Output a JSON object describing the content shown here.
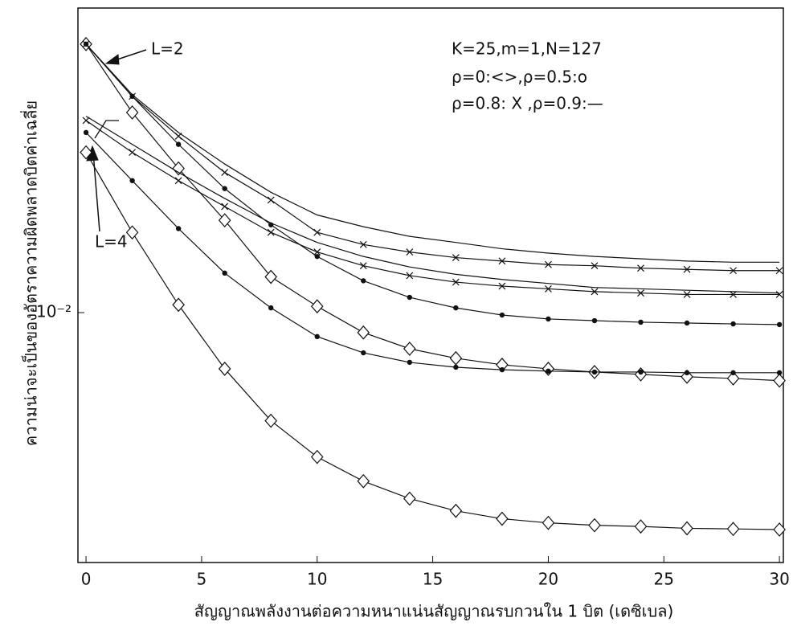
{
  "chart_data": {
    "type": "line",
    "xlabel": "สัญญาณพลังงานต่อความหนาแน่นสัญญาณรบกวนใน 1 บิต (เดซิเบล)",
    "ylabel": "ความน่าจะเป็นของอัตราความผิดพลาดบิตค่าเฉลี่ย",
    "annotations": [
      "K=25,m=1,N=127",
      "ρ=0:<>,ρ=0.5:o",
      "ρ=0.8: X ,ρ=0.9:—",
      "L=2",
      "L=4"
    ],
    "log_y": true,
    "xlim": [
      -0.35,
      30.17
    ],
    "xticks": [
      0,
      5,
      10,
      15,
      20,
      25,
      30
    ],
    "ylim": [
      0.0021,
      0.067
    ],
    "yticks": [
      {
        "value": 0.01,
        "label": "10⁻²"
      }
    ],
    "x": [
      0,
      2,
      4,
      6,
      8,
      10,
      12,
      14,
      16,
      18,
      20,
      22,
      24,
      26,
      28,
      30
    ],
    "series": [
      {
        "color": "#111111",
        "marker": "diamond",
        "values": [
          0.0535,
          0.0349,
          0.0246,
          0.0178,
          0.0125,
          0.0104,
          0.00883,
          0.00798,
          0.00752,
          0.00722,
          0.00704,
          0.0069,
          0.0068,
          0.0067,
          0.00663,
          0.00654
        ]
      },
      {
        "color": "#111111",
        "marker": "dot",
        "values": [
          0.0535,
          0.0386,
          0.0286,
          0.0217,
          0.0173,
          0.0142,
          0.0122,
          0.011,
          0.0103,
          0.00985,
          0.00961,
          0.00951,
          0.00942,
          0.00937,
          0.00932,
          0.00928
        ]
      },
      {
        "color": "#111111",
        "marker": "x",
        "values": [
          0.0535,
          0.0386,
          0.0301,
          0.024,
          0.0202,
          0.0165,
          0.0153,
          0.0146,
          0.0141,
          0.0138,
          0.0135,
          0.0134,
          0.0132,
          0.0131,
          0.013,
          0.013
        ]
      },
      {
        "color": "#111111",
        "marker": "none",
        "values": [
          0.0535,
          0.039,
          0.0308,
          0.0253,
          0.0212,
          0.0184,
          0.0171,
          0.0161,
          0.0155,
          0.0149,
          0.0145,
          0.0142,
          0.014,
          0.0138,
          0.0137,
          0.0137
        ]
      },
      {
        "color": "#111111",
        "marker": "diamond",
        "values": [
          0.0272,
          0.0165,
          0.0105,
          0.00704,
          0.00509,
          0.00406,
          0.00349,
          0.00313,
          0.0029,
          0.00276,
          0.00269,
          0.00265,
          0.00263,
          0.0026,
          0.00259,
          0.00258
        ]
      },
      {
        "color": "#111111",
        "marker": "dot",
        "values": [
          0.0308,
          0.0228,
          0.0169,
          0.0128,
          0.0103,
          0.00861,
          0.00778,
          0.00733,
          0.00711,
          0.007,
          0.00694,
          0.0069,
          0.0069,
          0.00687,
          0.00687,
          0.00687
        ]
      },
      {
        "color": "#111111",
        "marker": "x",
        "values": [
          0.0332,
          0.0272,
          0.0228,
          0.0194,
          0.0165,
          0.0146,
          0.0134,
          0.0126,
          0.0121,
          0.0118,
          0.0116,
          0.0114,
          0.0113,
          0.0112,
          0.0112,
          0.0112
        ]
      },
      {
        "color": "#111111",
        "marker": "none",
        "values": [
          0.0341,
          0.0286,
          0.024,
          0.0204,
          0.0175,
          0.0155,
          0.0142,
          0.0133,
          0.0127,
          0.0123,
          0.012,
          0.0117,
          0.0116,
          0.0115,
          0.0114,
          0.0113
        ]
      }
    ]
  }
}
